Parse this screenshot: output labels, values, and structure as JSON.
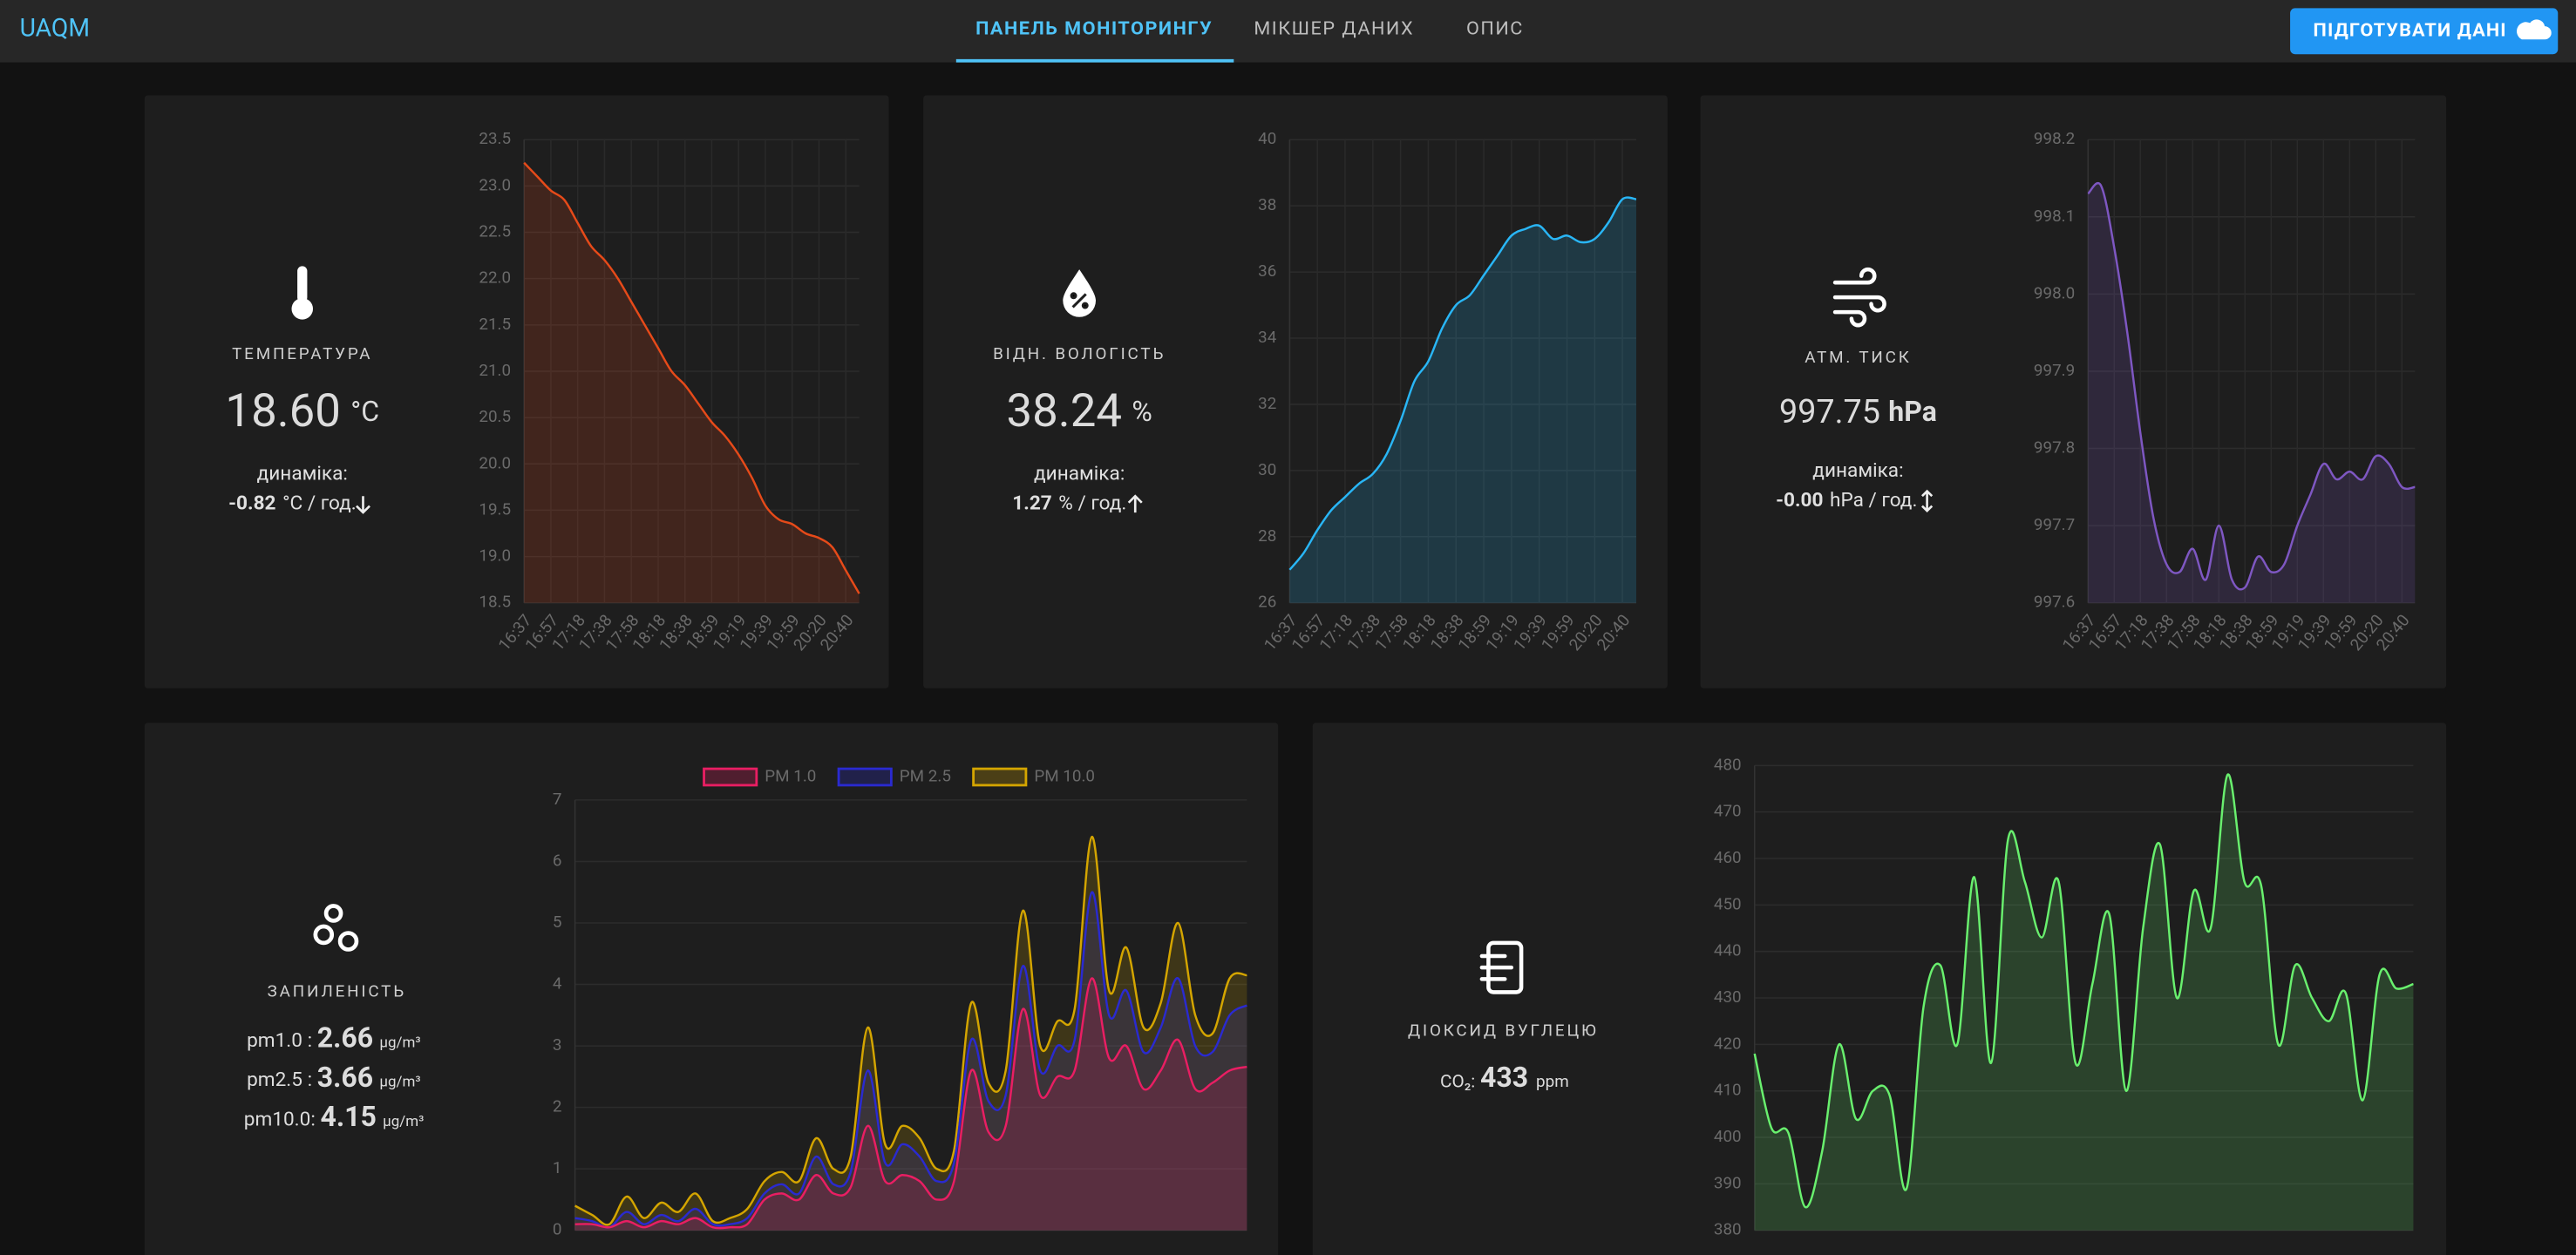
{
  "nav": {
    "brand": "UAQM",
    "tabs": [
      "ПАНЕЛЬ МОНІТОРИНГУ",
      "МІКШЕР ДАНИХ",
      "ОПИС"
    ],
    "button": "ПІДГОТУВАТИ ДАНІ"
  },
  "cards": [
    {
      "label": "ТЕМПЕРАТУРА",
      "value": "18.60",
      "unit": "°C",
      "dynamics_label": "динаміка:",
      "dynamics_value": "-0.82",
      "dynamics_unit": "°C / год.",
      "chart": {
        "type": "area",
        "color": "#e64a19",
        "categories": [
          "16:37",
          null,
          "16:57",
          null,
          "17:18",
          null,
          "17:38",
          null,
          "17:58",
          null,
          "18:18",
          null,
          "18:38",
          null,
          "18:59",
          null,
          "19:19",
          null,
          "19:39",
          null,
          "19:59",
          null,
          "20:20",
          null,
          "20:40",
          null
        ],
        "values": [
          23.25,
          23.1,
          22.95,
          22.85,
          22.6,
          22.35,
          22.2,
          22.0,
          21.75,
          21.5,
          21.25,
          21.0,
          20.85,
          20.65,
          20.45,
          20.3,
          20.1,
          19.85,
          19.55,
          19.4,
          19.35,
          19.25,
          19.2,
          19.1,
          18.85,
          18.6
        ],
        "ylim": [
          18.5,
          23.5
        ],
        "yticks": [
          18.5,
          {
            "value": 19,
            "label": "19.0"
          },
          19.5,
          {
            "value": 20,
            "label": "20.0"
          },
          20.5,
          {
            "value": 21,
            "label": "21.0"
          },
          21.5,
          {
            "value": 22,
            "label": "22.0"
          },
          22.5,
          {
            "value": 23,
            "label": "23.0"
          },
          23.5
        ],
        "grid": true
      }
    },
    {
      "label": "ВІДН. ВОЛОГІСТЬ",
      "value": "38.24",
      "unit": "%",
      "dynamics_label": "динаміка:",
      "dynamics_value": "1.27",
      "dynamics_unit": "% / год.",
      "chart": {
        "type": "area",
        "color": "#29b6f6",
        "categories": [
          "16:37",
          null,
          "16:57",
          null,
          "17:18",
          null,
          "17:38",
          null,
          "17:58",
          null,
          "18:18",
          null,
          "18:38",
          null,
          "18:59",
          null,
          "19:19",
          null,
          "19:39",
          null,
          "19:59",
          null,
          "20:20",
          null,
          "20:40",
          null
        ],
        "values": [
          27.0,
          27.5,
          28.2,
          28.8,
          29.2,
          29.6,
          29.9,
          30.5,
          31.5,
          32.7,
          33.3,
          34.3,
          35.0,
          35.3,
          35.9,
          36.5,
          37.1,
          37.3,
          37.4,
          37.0,
          37.1,
          36.9,
          37.0,
          37.5,
          38.2,
          38.2
        ],
        "ylim": [
          26,
          40
        ],
        "yticks": [
          26,
          28,
          30,
          32,
          34,
          36,
          38,
          40
        ],
        "grid": true
      }
    },
    {
      "label": "АТМ. ТИСК",
      "value": "997.75",
      "unit": "hPa",
      "dynamics_label": "динаміка:",
      "dynamics_value": "-0.00",
      "dynamics_unit": "hPa / год.",
      "chart": {
        "type": "area",
        "color": "#7e57c2",
        "categories": [
          "16:37",
          null,
          "16:57",
          null,
          "17:18",
          null,
          "17:38",
          null,
          "17:58",
          null,
          "18:18",
          null,
          "18:38",
          null,
          "18:59",
          null,
          "19:19",
          null,
          "19:39",
          null,
          "19:59",
          null,
          "20:20",
          null,
          "20:40",
          null
        ],
        "values": [
          998.13,
          998.14,
          998.06,
          997.95,
          997.82,
          997.71,
          997.65,
          997.64,
          997.67,
          997.63,
          997.7,
          997.63,
          997.62,
          997.66,
          997.64,
          997.65,
          997.7,
          997.74,
          997.78,
          997.76,
          997.77,
          997.76,
          997.79,
          997.78,
          997.75,
          997.75
        ],
        "ylim": [
          997.6,
          998.2
        ],
        "yticks": [
          997.6,
          997.7,
          997.8,
          997.9,
          {
            "value": 998,
            "label": "998.0"
          },
          998.1,
          998.2
        ],
        "grid": true
      }
    },
    {
      "label": "ЗАПИЛЕНІСТЬ",
      "readings": [
        {
          "name": "pm1.0 :",
          "value": "2.66",
          "unit": "μg/m³"
        },
        {
          "name": "pm2.5 :",
          "value": "3.66",
          "unit": "μg/m³"
        },
        {
          "name": "pm10.0:",
          "value": "4.15",
          "unit": "μg/m³"
        }
      ],
      "chart": {
        "type": "area",
        "legend": "top",
        "series": [
          {
            "name": "PM 1.0",
            "color": "#e91e63",
            "values": [
              0.1,
              0.1,
              0.05,
              0.15,
              0.05,
              0.15,
              0.1,
              0.2,
              0.05,
              0.05,
              0.1,
              0.5,
              0.6,
              0.5,
              0.9,
              0.6,
              0.7,
              1.7,
              0.8,
              0.9,
              0.8,
              0.5,
              0.8,
              2.6,
              1.6,
              1.7,
              3.6,
              2.2,
              2.5,
              2.6,
              4.1,
              2.8,
              3.0,
              2.3,
              2.6,
              3.1,
              2.3,
              2.4,
              2.6,
              2.66
            ]
          },
          {
            "name": "PM 2.5",
            "color": "#2a2ad0",
            "values": [
              0.2,
              0.15,
              0.05,
              0.3,
              0.1,
              0.25,
              0.15,
              0.35,
              0.1,
              0.1,
              0.2,
              0.6,
              0.75,
              0.6,
              1.2,
              0.75,
              0.95,
              2.6,
              1.1,
              1.4,
              1.2,
              0.8,
              1.1,
              3.1,
              2.1,
              2.2,
              4.3,
              2.6,
              3.0,
              3.1,
              5.5,
              3.5,
              3.9,
              2.9,
              3.3,
              4.1,
              3.0,
              2.9,
              3.5,
              3.66
            ]
          },
          {
            "name": "PM 10.0",
            "color": "#d4a500",
            "values": [
              0.4,
              0.25,
              0.1,
              0.55,
              0.2,
              0.45,
              0.3,
              0.6,
              0.15,
              0.2,
              0.35,
              0.8,
              0.95,
              0.8,
              1.5,
              1.0,
              1.2,
              3.3,
              1.4,
              1.7,
              1.5,
              1.0,
              1.3,
              3.7,
              2.4,
              2.6,
              5.2,
              3.0,
              3.4,
              3.6,
              6.4,
              3.9,
              4.6,
              3.3,
              3.7,
              5.0,
              3.5,
              3.2,
              4.1,
              4.15
            ]
          }
        ],
        "ylim": [
          0,
          7
        ],
        "yticks": [
          0,
          1,
          2,
          3,
          4,
          5,
          6,
          7
        ],
        "grid": true
      }
    },
    {
      "label": "ДІОКСИД ВУГЛЕЦЮ",
      "reading": {
        "name": "CO₂:",
        "value": "433",
        "unit": "ppm"
      },
      "chart": {
        "type": "area",
        "color": "#69f06e",
        "values": [
          418,
          402,
          401,
          385,
          397,
          420,
          404,
          410,
          409,
          389,
          428,
          437,
          420,
          456,
          416,
          464,
          455,
          443,
          455,
          416,
          433,
          448,
          410,
          445,
          463,
          430,
          453,
          445,
          478,
          455,
          454,
          420,
          437,
          430,
          425,
          431,
          408,
          435,
          432,
          433
        ],
        "ylim": [
          380,
          480
        ],
        "yticks": [
          380,
          390,
          400,
          410,
          420,
          430,
          440,
          450,
          460,
          470,
          480
        ],
        "grid": true
      }
    }
  ]
}
